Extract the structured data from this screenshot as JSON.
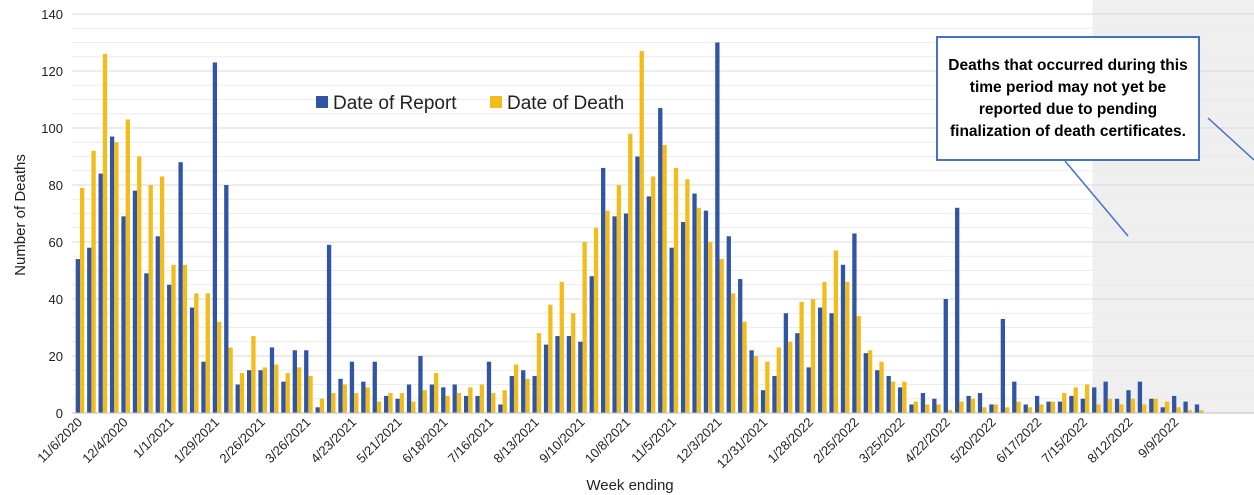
{
  "chart_data": {
    "type": "bar",
    "xlabel": "Week ending",
    "ylabel": "Number of Deaths",
    "ylim": [
      0,
      140
    ],
    "yticks": [
      0,
      20,
      40,
      60,
      80,
      100,
      120,
      140
    ],
    "grid": true,
    "legend_position": "top-center",
    "categories": [
      "11/6/2020",
      "11/13/2020",
      "11/20/2020",
      "11/27/2020",
      "12/4/2020",
      "12/11/2020",
      "12/18/2020",
      "12/25/2020",
      "1/1/2021",
      "1/8/2021",
      "1/15/2021",
      "1/22/2021",
      "1/29/2021",
      "2/5/2021",
      "2/12/2021",
      "2/19/2021",
      "2/26/2021",
      "3/5/2021",
      "3/12/2021",
      "3/19/2021",
      "3/26/2021",
      "4/2/2021",
      "4/9/2021",
      "4/16/2021",
      "4/23/2021",
      "4/30/2021",
      "5/7/2021",
      "5/14/2021",
      "5/21/2021",
      "5/28/2021",
      "6/4/2021",
      "6/11/2021",
      "6/18/2021",
      "6/25/2021",
      "7/2/2021",
      "7/9/2021",
      "7/16/2021",
      "7/23/2021",
      "7/30/2021",
      "8/6/2021",
      "8/13/2021",
      "8/20/2021",
      "8/27/2021",
      "9/3/2021",
      "9/10/2021",
      "9/17/2021",
      "9/24/2021",
      "10/1/2021",
      "10/8/2021",
      "10/15/2021",
      "10/22/2021",
      "10/29/2021",
      "11/5/2021",
      "11/12/2021",
      "11/19/2021",
      "11/26/2021",
      "12/3/2021",
      "12/10/2021",
      "12/17/2021",
      "12/24/2021",
      "12/31/2021",
      "1/7/2022",
      "1/14/2022",
      "1/21/2022",
      "1/28/2022",
      "2/4/2022",
      "2/11/2022",
      "2/18/2022",
      "2/25/2022",
      "3/4/2022",
      "3/11/2022",
      "3/18/2022",
      "3/25/2022",
      "4/1/2022",
      "4/8/2022",
      "4/15/2022",
      "4/22/2022",
      "4/29/2022",
      "5/6/2022",
      "5/13/2022",
      "5/20/2022",
      "5/27/2022",
      "6/3/2022",
      "6/10/2022",
      "6/17/2022",
      "6/24/2022",
      "7/1/2022",
      "7/8/2022",
      "7/15/2022",
      "7/22/2022",
      "7/29/2022",
      "8/5/2022",
      "8/12/2022",
      "8/19/2022",
      "8/26/2022",
      "9/2/2022",
      "9/9/2022",
      "9/16/2022",
      "9/23/2022"
    ],
    "tick_labels": [
      "11/6/2020",
      "12/4/2020",
      "1/1/2021",
      "1/29/2021",
      "2/26/2021",
      "3/26/2021",
      "4/23/2021",
      "5/21/2021",
      "6/18/2021",
      "7/16/2021",
      "8/13/2021",
      "9/10/2021",
      "10/8/2021",
      "11/5/2021",
      "12/3/2021",
      "12/31/2021",
      "1/28/2022",
      "2/25/2022",
      "3/25/2022",
      "4/22/2022",
      "5/20/2022",
      "6/17/2022",
      "7/15/2022",
      "8/12/2022",
      "9/9/2022"
    ],
    "series": [
      {
        "name": "Date of Report",
        "color": "#2f55a4",
        "values": [
          54,
          58,
          84,
          97,
          69,
          78,
          49,
          62,
          45,
          88,
          37,
          18,
          123,
          80,
          10,
          15,
          15,
          23,
          11,
          22,
          22,
          2,
          59,
          12,
          18,
          11,
          18,
          6,
          5,
          10,
          20,
          10,
          9,
          10,
          6,
          6,
          18,
          3,
          13,
          15,
          13,
          24,
          27,
          27,
          25,
          48,
          86,
          69,
          70,
          90,
          76,
          107,
          58,
          67,
          77,
          71,
          130,
          62,
          47,
          22,
          8,
          13,
          35,
          28,
          16,
          37,
          35,
          52,
          63,
          21,
          15,
          13,
          9,
          3,
          7,
          5,
          40,
          72,
          6,
          7,
          3,
          33,
          11,
          3,
          6,
          4,
          4,
          6,
          5,
          9,
          11,
          5,
          8,
          11,
          5,
          2,
          6,
          4,
          3
        ]
      },
      {
        "name": "Date of Death",
        "color": "#f2bc1b",
        "values": [
          79,
          92,
          126,
          95,
          103,
          90,
          80,
          83,
          52,
          52,
          42,
          42,
          32,
          23,
          14,
          27,
          16,
          17,
          14,
          16,
          13,
          5,
          7,
          10,
          7,
          9,
          4,
          7,
          7,
          4,
          8,
          14,
          6,
          7,
          9,
          10,
          7,
          8,
          17,
          12,
          28,
          38,
          46,
          35,
          60,
          65,
          71,
          80,
          98,
          127,
          83,
          94,
          86,
          82,
          72,
          60,
          54,
          42,
          32,
          20,
          18,
          23,
          25,
          39,
          40,
          46,
          57,
          46,
          34,
          22,
          18,
          11,
          11,
          4,
          3,
          3,
          1,
          4,
          5,
          2,
          3,
          2,
          4,
          2,
          3,
          4,
          7,
          9,
          10,
          3,
          5,
          3,
          5,
          3,
          5,
          4,
          2,
          1,
          1
        ]
      }
    ],
    "shaded_region_start": "7/22/2022",
    "annotation": "Deaths that occurred during this time period may not yet be reported due to pending finalization of death certificates."
  }
}
